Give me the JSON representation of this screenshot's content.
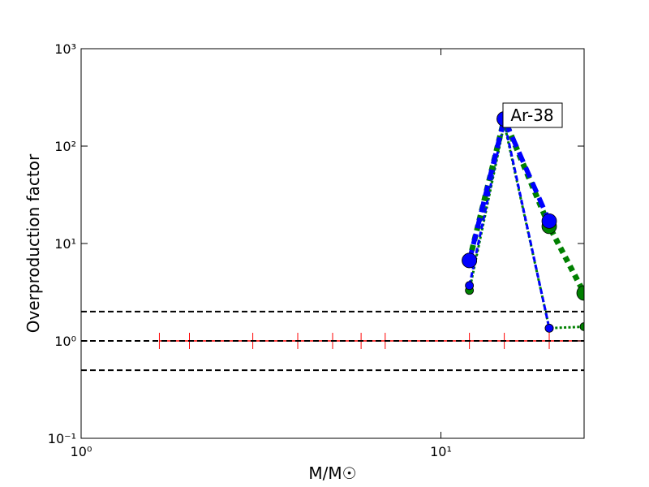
{
  "chart_data": {
    "type": "line",
    "xlabel": "M/M☉",
    "ylabel": "Overproduction factor",
    "xscale": "log",
    "yscale": "log",
    "xlim": [
      1,
      25
    ],
    "ylim": [
      0.1,
      1000
    ],
    "xticks": [
      {
        "value": 1,
        "label": "10⁰"
      },
      {
        "value": 10,
        "label": "10¹"
      }
    ],
    "yticks": [
      {
        "value": 0.1,
        "label": "10⁻¹"
      },
      {
        "value": 1,
        "label": "10⁰"
      },
      {
        "value": 10,
        "label": "10¹"
      },
      {
        "value": 100,
        "label": "10²"
      },
      {
        "value": 1000,
        "label": "10³"
      }
    ],
    "hlines": [
      2,
      1,
      0.5
    ],
    "annotation": "Ar-38",
    "series": [
      {
        "color": "#ff0000",
        "linestyle": "solid",
        "linewidth": 1.5,
        "marker": "vline",
        "markersize": 10,
        "x": [
          1.65,
          2,
          3,
          4,
          5,
          6,
          7,
          12,
          15,
          20,
          25
        ],
        "values": [
          1,
          1,
          1,
          1,
          1,
          1,
          1,
          1,
          1,
          1,
          1
        ]
      },
      {
        "color": "#008000",
        "linestyle": "dotted",
        "linewidth": 3,
        "marker": "circle",
        "markersize": 5,
        "x": [
          12,
          15,
          20,
          25
        ],
        "values": [
          3.3,
          170,
          1.35,
          1.4
        ]
      },
      {
        "color": "#0000ff",
        "linestyle": "dashed",
        "linewidth": 3,
        "marker": "circle",
        "markersize": 5,
        "x": [
          12,
          15,
          20
        ],
        "values": [
          3.7,
          180,
          1.35
        ]
      },
      {
        "color": "#008000",
        "linestyle": "dotted",
        "linewidth": 7,
        "marker": "circle",
        "markersize": 9,
        "x": [
          12,
          15,
          20,
          25
        ],
        "values": [
          6.7,
          190,
          15,
          3.1
        ]
      },
      {
        "color": "#0000ff",
        "linestyle": "dashed",
        "linewidth": 6,
        "marker": "circle",
        "markersize": 9,
        "x": [
          12,
          15,
          20
        ],
        "values": [
          6.7,
          190,
          17
        ]
      }
    ]
  }
}
